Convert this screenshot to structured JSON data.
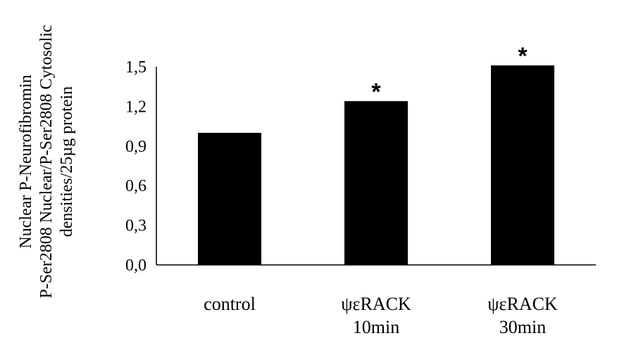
{
  "chart_data": {
    "type": "bar",
    "categories": [
      [
        "control"
      ],
      [
        "ψεRACK",
        "10min"
      ],
      [
        "ψεRACK",
        "30min"
      ]
    ],
    "values": [
      1.0,
      1.24,
      1.51
    ],
    "annotations": [
      "",
      "*",
      "*"
    ],
    "ylabel_lines": [
      "Nuclear P-Neurofibromin",
      "P-Ser2808 Nuclear/P-Ser2808 Cytosolic",
      "densities/25µg protein"
    ],
    "ylim": [
      0,
      1.5
    ],
    "yticks": [
      "0,0",
      "0,3",
      "0,6",
      "0,9",
      "1,2",
      "1,5"
    ],
    "bar_color": "#000000",
    "grid": false,
    "legend": "none"
  }
}
